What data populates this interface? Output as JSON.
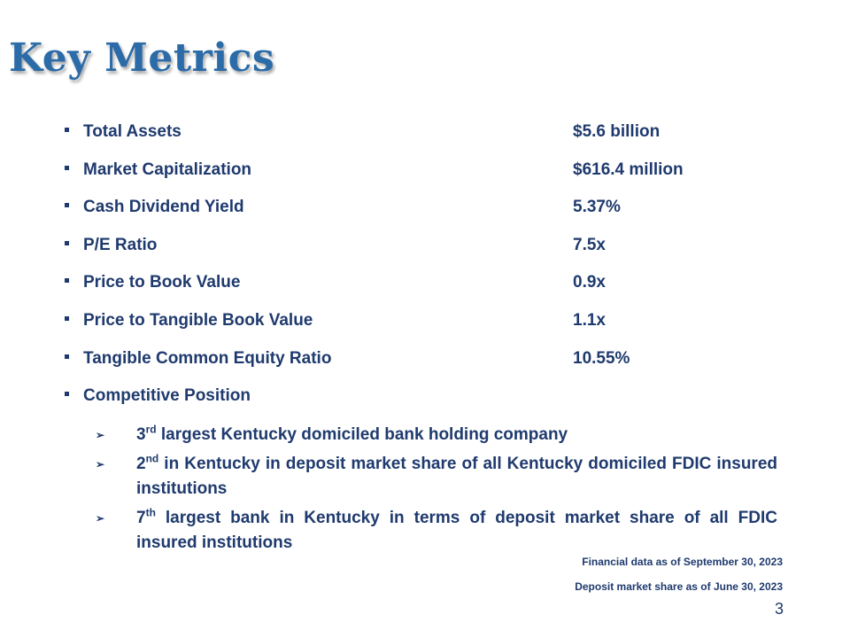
{
  "slide": {
    "title": "Key Metrics",
    "metrics": [
      {
        "label": "Total Assets",
        "value": "$5.6 billion"
      },
      {
        "label": "Market Capitalization",
        "value": "$616.4 million"
      },
      {
        "label": "Cash Dividend Yield",
        "value": "5.37%"
      },
      {
        "label": "P/E Ratio",
        "value": "7.5x"
      },
      {
        "label": "Price to Book Value",
        "value": "0.9x"
      },
      {
        "label": "Price to Tangible Book Value",
        "value": "1.1x"
      },
      {
        "label": "Tangible Common Equity Ratio",
        "value": "10.55%"
      },
      {
        "label": "Competitive Position",
        "value": ""
      }
    ],
    "competitive_position": [
      {
        "ordinal": "3",
        "suffix": "rd",
        "text": " largest Kentucky domiciled bank holding company"
      },
      {
        "ordinal": "2",
        "suffix": "nd",
        "text": " in Kentucky in deposit market share of all Kentucky domiciled FDIC insured institutions"
      },
      {
        "ordinal": "7",
        "suffix": "th",
        "text": " largest bank in Kentucky in terms of deposit market share of all FDIC insured institutions"
      }
    ],
    "footnotes": [
      "Financial data as of September 30, 2023",
      "Deposit market share as of June 30, 2023"
    ],
    "page_number": "3",
    "colors": {
      "title": "#2A6BA8",
      "text": "#1F3A6E"
    }
  }
}
